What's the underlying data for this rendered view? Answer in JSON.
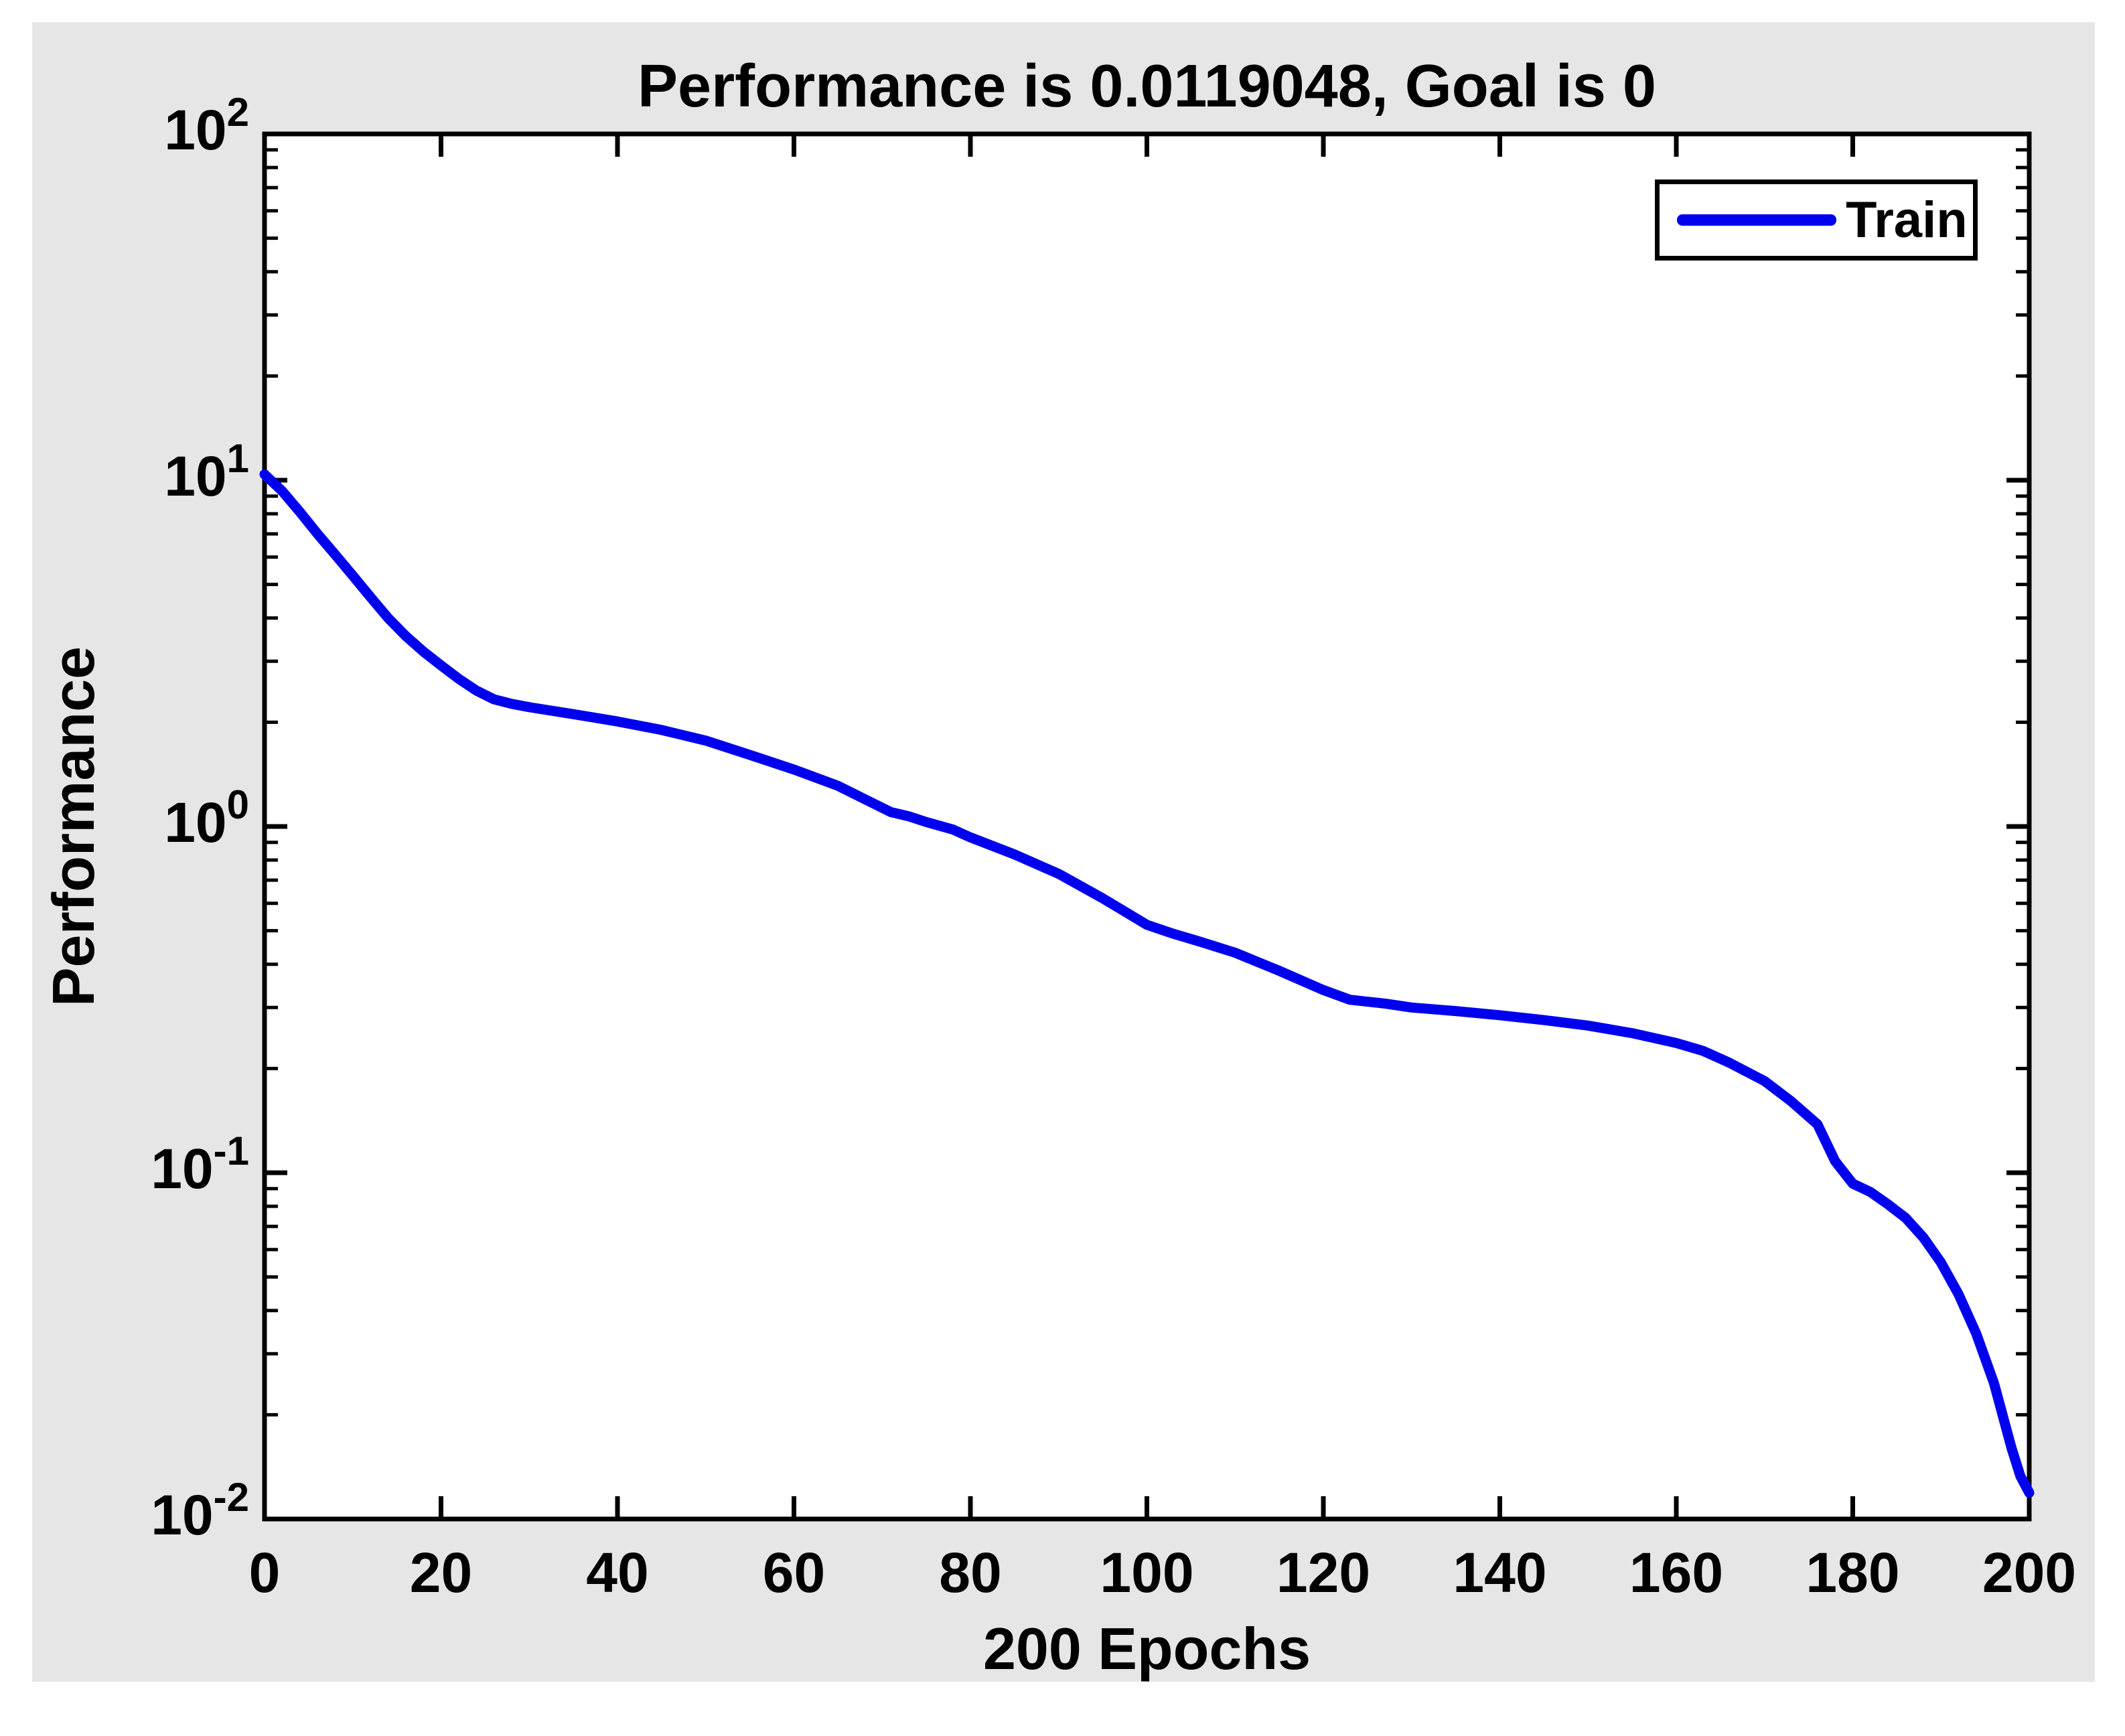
{
  "figure": {
    "panel_color": "#e6e6e6",
    "plot_bg": "#ffffff",
    "axis_color": "#000000",
    "text_color": "#000000"
  },
  "chart_data": {
    "type": "line",
    "title": "Performance is 0.0119048, Goal is 0",
    "xlabel": "200 Epochs",
    "ylabel": "Performance",
    "x_ticks": [
      0,
      20,
      40,
      60,
      80,
      100,
      120,
      140,
      160,
      180,
      200
    ],
    "xlim": [
      0,
      200
    ],
    "y_scale": "log",
    "log_base_label": "10",
    "y_tick_exponents": [
      2,
      1,
      0,
      -1,
      -2
    ],
    "ylim_exponents": [
      -2,
      2
    ],
    "grid": false,
    "legend": {
      "position": "top-right",
      "entries": [
        {
          "label": "Train",
          "color": "#0000ee"
        }
      ]
    },
    "series": [
      {
        "name": "Train",
        "color": "#0000ee",
        "points": [
          [
            0,
            10.4
          ],
          [
            2,
            9.3
          ],
          [
            4,
            8.1
          ],
          [
            6,
            7.0
          ],
          [
            8,
            6.1
          ],
          [
            10,
            5.3
          ],
          [
            12,
            4.6
          ],
          [
            14,
            4.0
          ],
          [
            16,
            3.55
          ],
          [
            18,
            3.2
          ],
          [
            20,
            2.92
          ],
          [
            22,
            2.67
          ],
          [
            24,
            2.47
          ],
          [
            26,
            2.33
          ],
          [
            28,
            2.26
          ],
          [
            30,
            2.21
          ],
          [
            35,
            2.11
          ],
          [
            40,
            2.01
          ],
          [
            45,
            1.9
          ],
          [
            50,
            1.77
          ],
          [
            55,
            1.61
          ],
          [
            60,
            1.46
          ],
          [
            65,
            1.31
          ],
          [
            68,
            1.2
          ],
          [
            71,
            1.1
          ],
          [
            73,
            1.07
          ],
          [
            75,
            1.03
          ],
          [
            78,
            0.98
          ],
          [
            80,
            0.93
          ],
          [
            85,
            0.83
          ],
          [
            90,
            0.73
          ],
          [
            95,
            0.62
          ],
          [
            100,
            0.52
          ],
          [
            103,
            0.49
          ],
          [
            106,
            0.465
          ],
          [
            110,
            0.432
          ],
          [
            115,
            0.383
          ],
          [
            120,
            0.337
          ],
          [
            123,
            0.316
          ],
          [
            127,
            0.308
          ],
          [
            130,
            0.3
          ],
          [
            135,
            0.293
          ],
          [
            140,
            0.285
          ],
          [
            145,
            0.276
          ],
          [
            150,
            0.266
          ],
          [
            155,
            0.253
          ],
          [
            160,
            0.237
          ],
          [
            163,
            0.225
          ],
          [
            166,
            0.208
          ],
          [
            170,
            0.184
          ],
          [
            173,
            0.161
          ],
          [
            176,
            0.138
          ],
          [
            178,
            0.108
          ],
          [
            180,
            0.093
          ],
          [
            182,
            0.088
          ],
          [
            184,
            0.081
          ],
          [
            186,
            0.074
          ],
          [
            188,
            0.065
          ],
          [
            190,
            0.055
          ],
          [
            192,
            0.0445
          ],
          [
            194,
            0.0343
          ],
          [
            196,
            0.0247
          ],
          [
            198,
            0.016
          ],
          [
            199,
            0.0133
          ],
          [
            200,
            0.0119
          ]
        ]
      }
    ]
  }
}
